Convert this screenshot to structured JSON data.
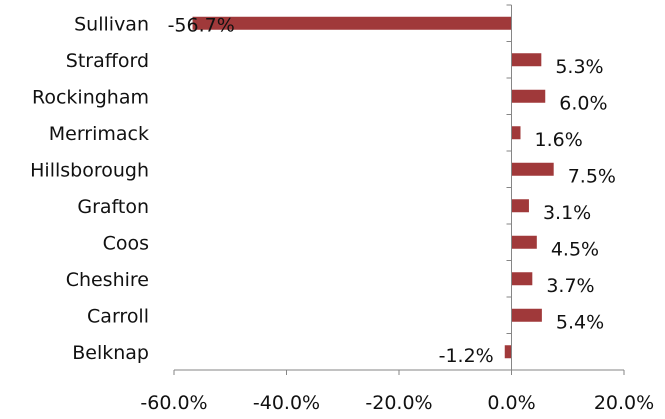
{
  "chart_data": {
    "type": "bar",
    "orientation": "horizontal",
    "title": "",
    "xlabel": "",
    "ylabel": "",
    "categories": [
      "Belknap",
      "Carroll",
      "Cheshire",
      "Coos",
      "Grafton",
      "Hillsborough",
      "Merrimack",
      "Rockingham",
      "Strafford",
      "Sullivan"
    ],
    "values": [
      -1.2,
      5.4,
      3.7,
      4.5,
      3.1,
      7.5,
      1.6,
      6.0,
      5.3,
      -56.7
    ],
    "value_labels": [
      "-1.2%",
      "5.4%",
      "3.7%",
      "4.5%",
      "3.1%",
      "7.5%",
      "1.6%",
      "6.0%",
      "5.3%",
      "-56.7%"
    ],
    "xlim": [
      -60,
      20
    ],
    "ticks": [
      -60,
      -40,
      -20,
      0,
      20
    ],
    "tick_labels": [
      "-60.0%",
      "-40.0%",
      "-20.0%",
      "0.0%",
      "20.0%"
    ],
    "bar_color": "#A0393A",
    "axis_color": "#868686",
    "grid": false,
    "legend": "none"
  }
}
